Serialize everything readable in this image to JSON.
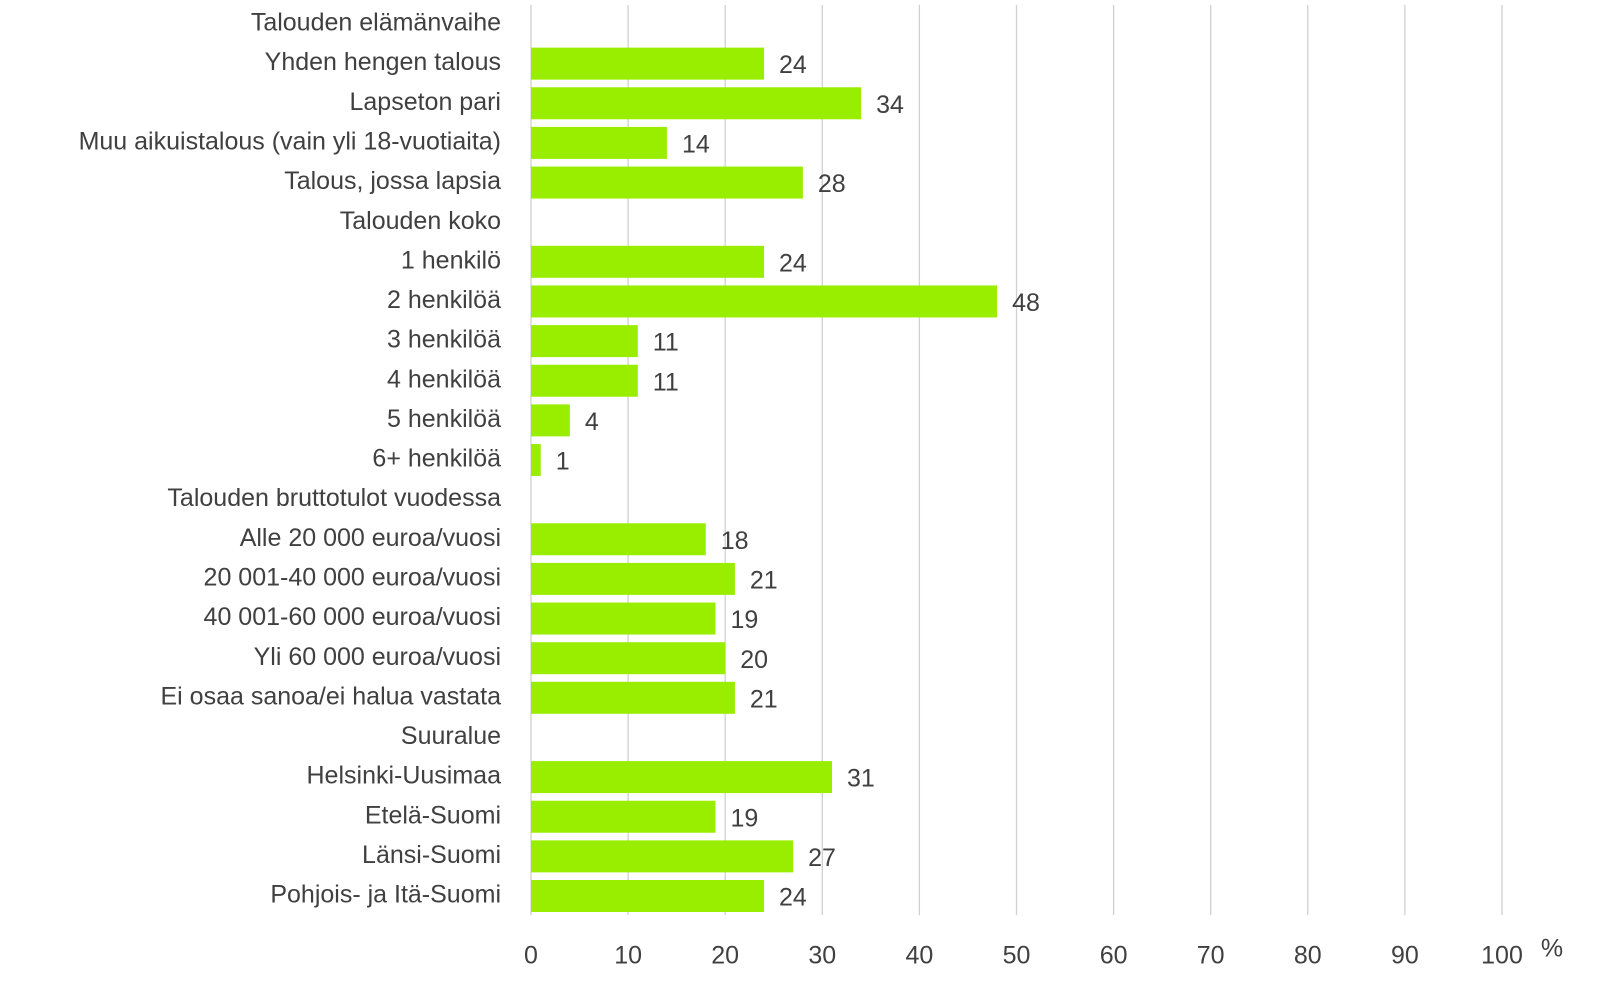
{
  "chart_data": {
    "type": "bar",
    "orientation": "horizontal",
    "x_label": "%",
    "categories": [
      "Talouden elämänvaihe",
      "Yhden hengen talous",
      "Lapseton pari",
      "Muu aikuistalous (vain yli 18-vuotiaita)",
      "Talous, jossa lapsia",
      "Talouden koko",
      "1 henkilö",
      "2 henkilöä",
      "3 henkilöä",
      "4 henkilöä",
      "5 henkilöä",
      "6+ henkilöä",
      "Talouden bruttotulot vuodessa",
      "Alle 20 000 euroa/vuosi",
      "20 001-40 000 euroa/vuosi",
      "40 001-60 000 euroa/vuosi",
      "Yli 60 000 euroa/vuosi",
      "Ei osaa sanoa/ei halua vastata",
      "Suuralue",
      "Helsinki-Uusimaa",
      "Etelä-Suomi",
      "Länsi-Suomi",
      "Pohjois- ja Itä-Suomi"
    ],
    "values": [
      null,
      24,
      34,
      14,
      28,
      null,
      24,
      48,
      11,
      11,
      4,
      1,
      null,
      18,
      21,
      19,
      20,
      21,
      null,
      31,
      19,
      27,
      24
    ],
    "color": "#99ee00",
    "xlim": [
      0,
      100
    ],
    "xticks": [
      0,
      10,
      20,
      30,
      40,
      50,
      60,
      70,
      80,
      90,
      100
    ],
    "grid": true
  }
}
